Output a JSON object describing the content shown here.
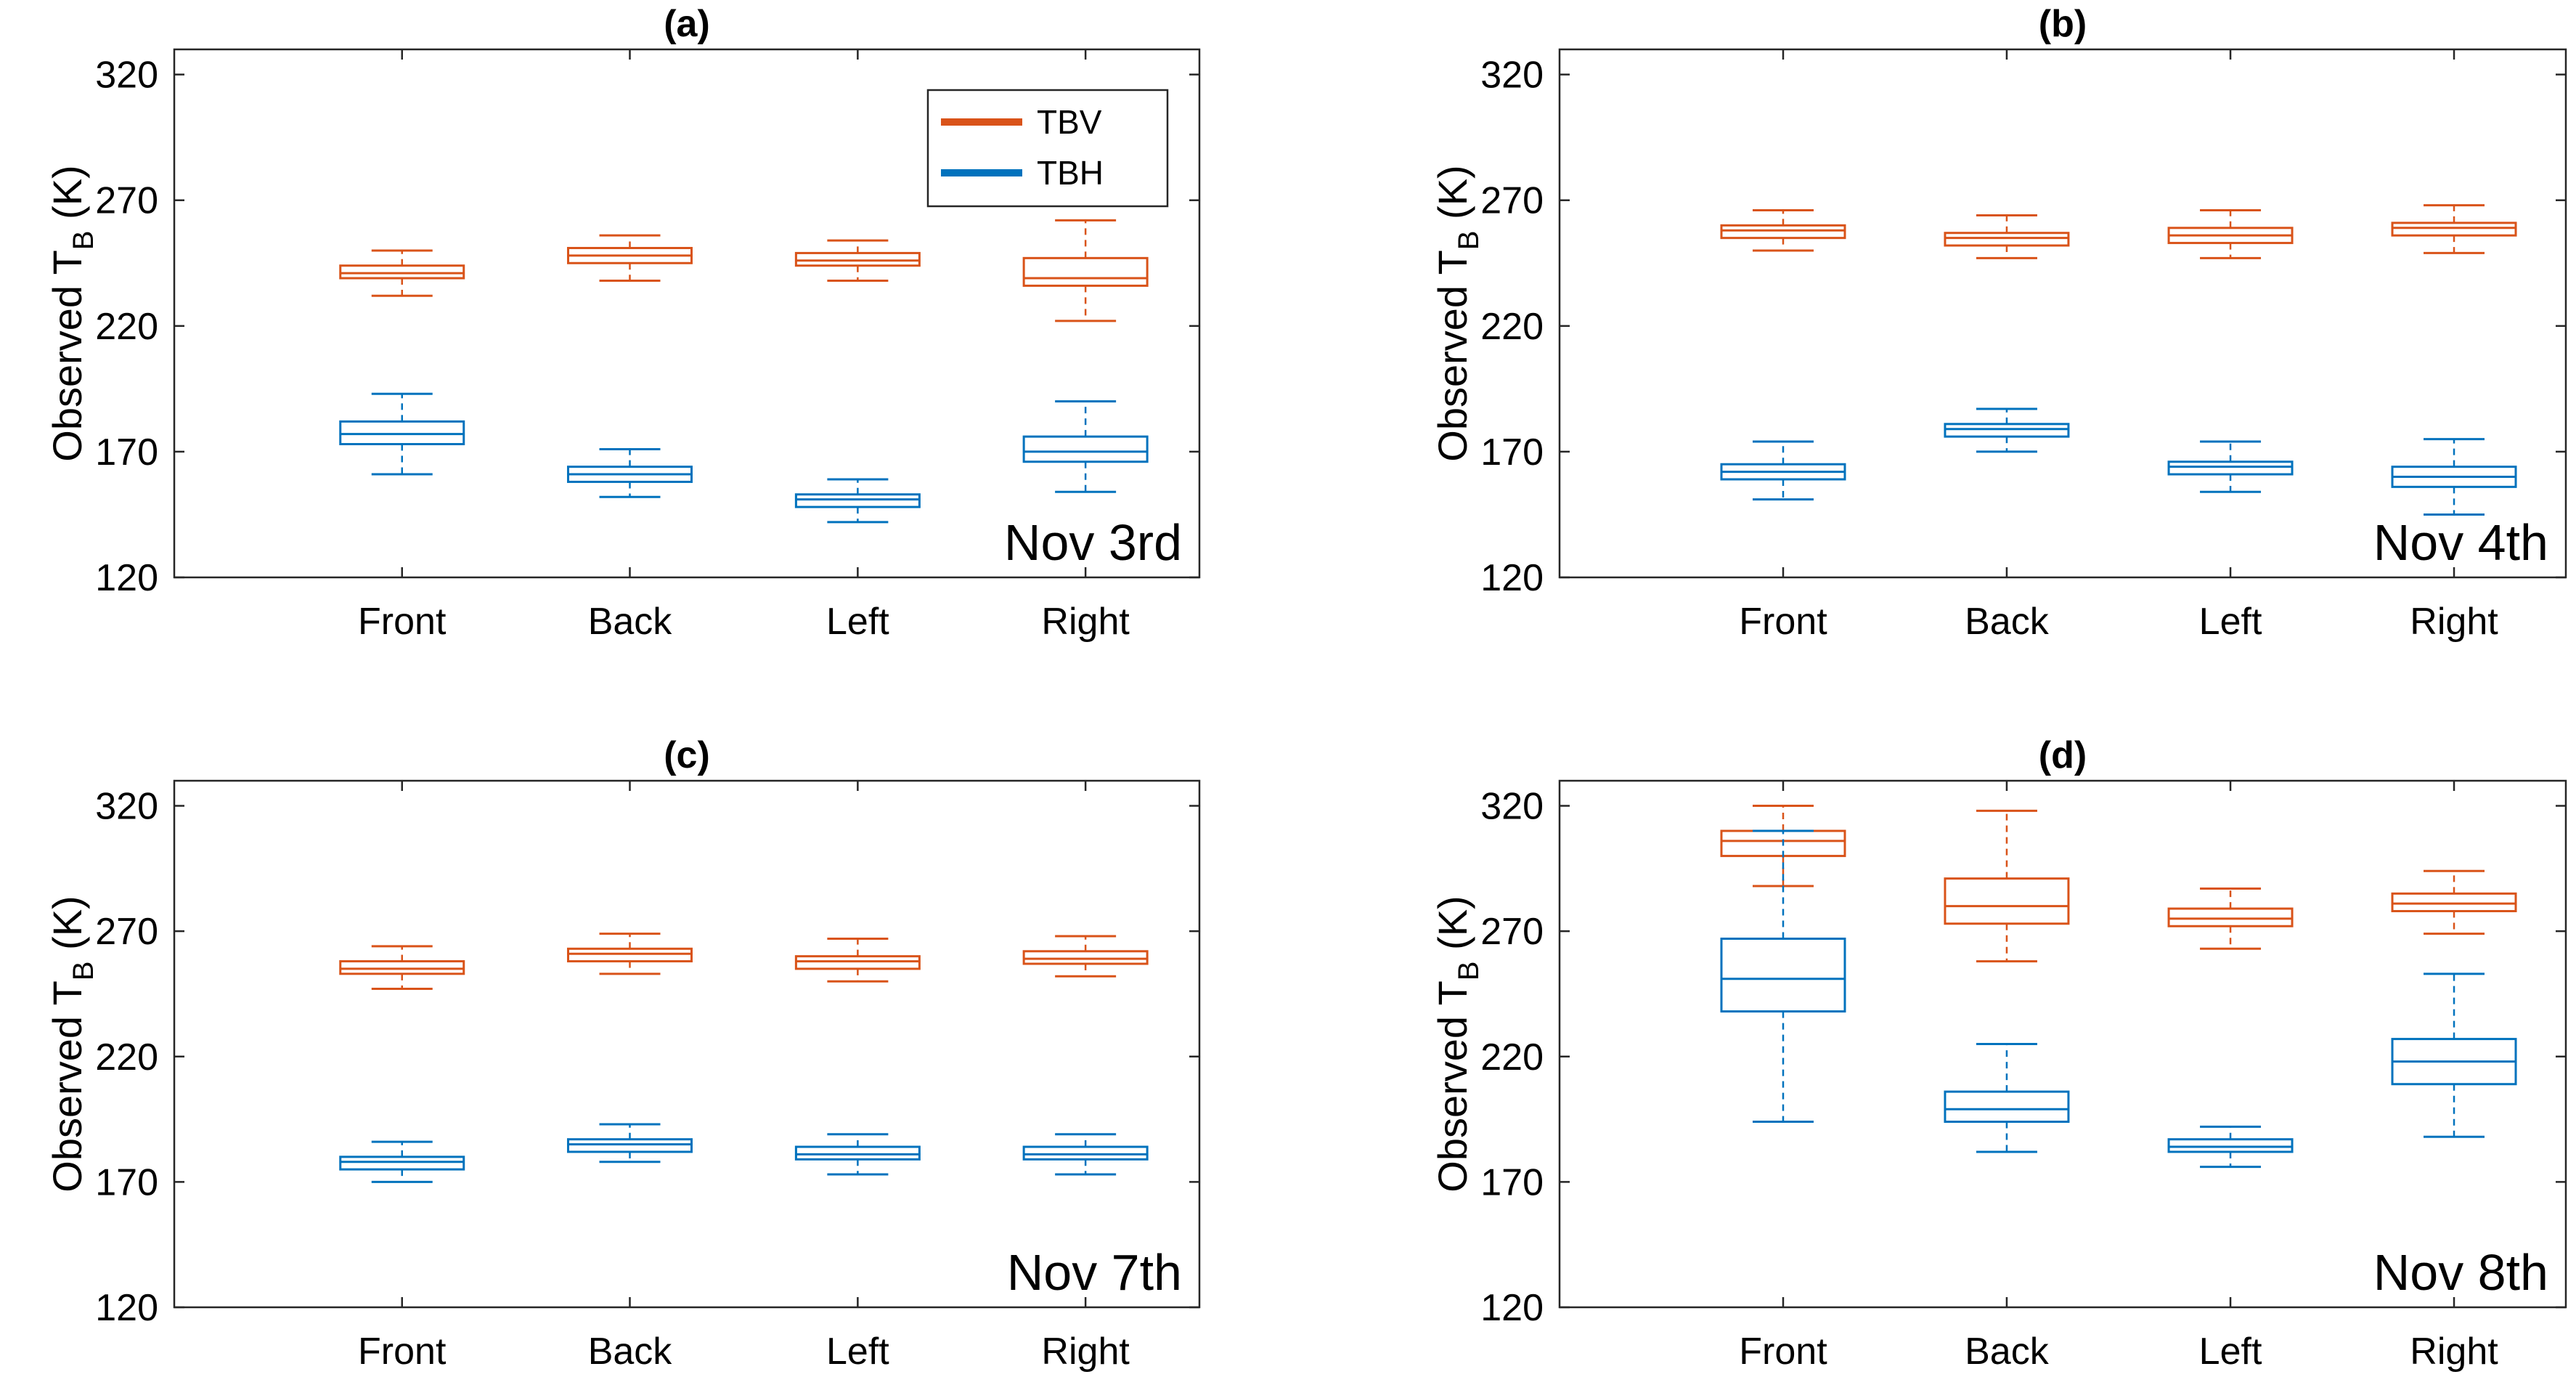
{
  "chart_data": [
    {
      "type": "box",
      "title": "(a)",
      "annotation": "Nov 3rd",
      "ylabel": "Observed T_B (K)",
      "ylim": [
        120,
        330
      ],
      "yticks": [
        120,
        170,
        220,
        270,
        320
      ],
      "categories": [
        "Front",
        "Back",
        "Left",
        "Right"
      ],
      "legend": {
        "position": "top-right",
        "entries": [
          "TBV",
          "TBH"
        ]
      },
      "series": [
        {
          "name": "TBV",
          "color": "#D95319",
          "boxes": [
            {
              "whisker_low": 232,
              "q1": 239,
              "median": 241,
              "q3": 244,
              "whisker_high": 250
            },
            {
              "whisker_low": 238,
              "q1": 245,
              "median": 248,
              "q3": 251,
              "whisker_high": 256
            },
            {
              "whisker_low": 238,
              "q1": 244,
              "median": 246,
              "q3": 249,
              "whisker_high": 254
            },
            {
              "whisker_low": 222,
              "q1": 236,
              "median": 239,
              "q3": 247,
              "whisker_high": 262
            }
          ]
        },
        {
          "name": "TBH",
          "color": "#0072BD",
          "boxes": [
            {
              "whisker_low": 161,
              "q1": 173,
              "median": 177,
              "q3": 182,
              "whisker_high": 193
            },
            {
              "whisker_low": 152,
              "q1": 158,
              "median": 161,
              "q3": 164,
              "whisker_high": 171
            },
            {
              "whisker_low": 142,
              "q1": 148,
              "median": 151,
              "q3": 153,
              "whisker_high": 159
            },
            {
              "whisker_low": 154,
              "q1": 166,
              "median": 170,
              "q3": 176,
              "whisker_high": 190
            }
          ]
        }
      ]
    },
    {
      "type": "box",
      "title": "(b)",
      "annotation": "Nov 4th",
      "ylabel": "Observed T_B (K)",
      "ylim": [
        120,
        330
      ],
      "yticks": [
        120,
        170,
        220,
        270,
        320
      ],
      "categories": [
        "Front",
        "Back",
        "Left",
        "Right"
      ],
      "series": [
        {
          "name": "TBV",
          "color": "#D95319",
          "boxes": [
            {
              "whisker_low": 250,
              "q1": 255,
              "median": 258,
              "q3": 260,
              "whisker_high": 266
            },
            {
              "whisker_low": 247,
              "q1": 252,
              "median": 255,
              "q3": 257,
              "whisker_high": 264
            },
            {
              "whisker_low": 247,
              "q1": 253,
              "median": 256,
              "q3": 259,
              "whisker_high": 266
            },
            {
              "whisker_low": 249,
              "q1": 256,
              "median": 259,
              "q3": 261,
              "whisker_high": 268
            }
          ]
        },
        {
          "name": "TBH",
          "color": "#0072BD",
          "boxes": [
            {
              "whisker_low": 151,
              "q1": 159,
              "median": 162,
              "q3": 165,
              "whisker_high": 174
            },
            {
              "whisker_low": 170,
              "q1": 176,
              "median": 179,
              "q3": 181,
              "whisker_high": 187
            },
            {
              "whisker_low": 154,
              "q1": 161,
              "median": 164,
              "q3": 166,
              "whisker_high": 174
            },
            {
              "whisker_low": 145,
              "q1": 156,
              "median": 160,
              "q3": 164,
              "whisker_high": 175
            }
          ]
        }
      ]
    },
    {
      "type": "box",
      "title": "(c)",
      "annotation": "Nov 7th",
      "ylabel": "Observed T_B (K)",
      "ylim": [
        120,
        330
      ],
      "yticks": [
        120,
        170,
        220,
        270,
        320
      ],
      "categories": [
        "Front",
        "Back",
        "Left",
        "Right"
      ],
      "series": [
        {
          "name": "TBV",
          "color": "#D95319",
          "boxes": [
            {
              "whisker_low": 247,
              "q1": 253,
              "median": 255,
              "q3": 258,
              "whisker_high": 264
            },
            {
              "whisker_low": 253,
              "q1": 258,
              "median": 261,
              "q3": 263,
              "whisker_high": 269
            },
            {
              "whisker_low": 250,
              "q1": 255,
              "median": 258,
              "q3": 260,
              "whisker_high": 267
            },
            {
              "whisker_low": 252,
              "q1": 257,
              "median": 259,
              "q3": 262,
              "whisker_high": 268
            }
          ]
        },
        {
          "name": "TBH",
          "color": "#0072BD",
          "boxes": [
            {
              "whisker_low": 170,
              "q1": 175,
              "median": 178,
              "q3": 180,
              "whisker_high": 186
            },
            {
              "whisker_low": 178,
              "q1": 182,
              "median": 185,
              "q3": 187,
              "whisker_high": 193
            },
            {
              "whisker_low": 173,
              "q1": 179,
              "median": 181,
              "q3": 184,
              "whisker_high": 189
            },
            {
              "whisker_low": 173,
              "q1": 179,
              "median": 181,
              "q3": 184,
              "whisker_high": 189
            }
          ]
        }
      ]
    },
    {
      "type": "box",
      "title": "(d)",
      "annotation": "Nov 8th",
      "ylabel": "Observed T_B (K)",
      "ylim": [
        120,
        330
      ],
      "yticks": [
        120,
        170,
        220,
        270,
        320
      ],
      "categories": [
        "Front",
        "Back",
        "Left",
        "Right"
      ],
      "series": [
        {
          "name": "TBV",
          "color": "#D95319",
          "boxes": [
            {
              "whisker_low": 288,
              "q1": 300,
              "median": 306,
              "q3": 310,
              "whisker_high": 320
            },
            {
              "whisker_low": 258,
              "q1": 273,
              "median": 280,
              "q3": 291,
              "whisker_high": 318
            },
            {
              "whisker_low": 263,
              "q1": 272,
              "median": 275,
              "q3": 279,
              "whisker_high": 287
            },
            {
              "whisker_low": 269,
              "q1": 278,
              "median": 281,
              "q3": 285,
              "whisker_high": 294
            }
          ]
        },
        {
          "name": "TBH",
          "color": "#0072BD",
          "boxes": [
            {
              "whisker_low": 194,
              "q1": 238,
              "median": 251,
              "q3": 267,
              "whisker_high": 310
            },
            {
              "whisker_low": 182,
              "q1": 194,
              "median": 199,
              "q3": 206,
              "whisker_high": 225
            },
            {
              "whisker_low": 176,
              "q1": 182,
              "median": 184,
              "q3": 187,
              "whisker_high": 192
            },
            {
              "whisker_low": 188,
              "q1": 209,
              "median": 218,
              "q3": 227,
              "whisker_high": 253
            }
          ]
        }
      ]
    }
  ]
}
